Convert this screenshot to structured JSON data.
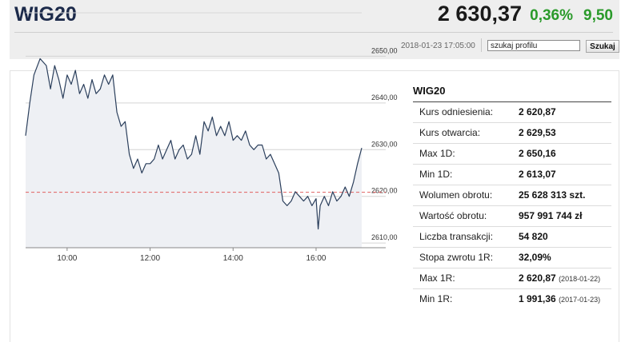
{
  "quote": {
    "name": "WIG20",
    "value": "2 630,37",
    "change_pct": "0,36%",
    "change_abs": "9,50",
    "timestamp": "2018-01-23 17:05:00"
  },
  "search": {
    "value": "szukaj profilu",
    "button": "Szukaj"
  },
  "stats": {
    "title": "WIG20",
    "rows": [
      {
        "label": "Kurs odniesienia:",
        "value": "2 620,87",
        "date": ""
      },
      {
        "label": "Kurs otwarcia:",
        "value": "2 629,53",
        "date": ""
      },
      {
        "label": "Max 1D:",
        "value": "2 650,16",
        "date": ""
      },
      {
        "label": "Min 1D:",
        "value": "2 613,07",
        "date": ""
      },
      {
        "label": "Wolumen obrotu:",
        "value": "25 628 313 szt.",
        "date": ""
      },
      {
        "label": "Wartość obrotu:",
        "value": "957 991 744 zł",
        "date": ""
      },
      {
        "label": "Liczba transakcji:",
        "value": "54 820",
        "date": ""
      },
      {
        "label": "Stopa zwrotu 1R:",
        "value": "32,09%",
        "date": ""
      },
      {
        "label": "Max 1R:",
        "value": "2 620,87",
        "date": "(2018-01-22)"
      },
      {
        "label": "Min 1R:",
        "value": "1 991,36",
        "date": "(2017-01-23)"
      }
    ]
  },
  "colors": {
    "up": "#2a9a2a",
    "line": "#2b3f5c",
    "area": "#eef0f4",
    "reference": "#e06060"
  },
  "chart_data": {
    "type": "area",
    "y_ticks": [
      "2610,00",
      "2620,00",
      "2630,00",
      "2640,00",
      "2650,00"
    ],
    "x_ticks": [
      "10:00",
      "12:00",
      "14:00",
      "16:00"
    ],
    "ylim": [
      2609,
      2660
    ],
    "xlim": [
      9.0,
      17.1
    ],
    "reference_line": 2620.87,
    "grid": true,
    "series": [
      {
        "x": [
          9.0,
          9.1,
          9.2,
          9.35,
          9.5,
          9.6,
          9.7,
          9.8,
          9.9,
          10.0,
          10.1,
          10.2,
          10.3,
          10.4,
          10.5,
          10.6,
          10.7,
          10.8,
          10.9,
          11.0,
          11.1,
          11.2,
          11.3,
          11.4,
          11.5,
          11.6,
          11.7,
          11.8,
          11.9,
          12.0,
          12.1,
          12.2,
          12.3,
          12.4,
          12.5,
          12.6,
          12.7,
          12.8,
          12.9,
          13.0,
          13.1,
          13.2,
          13.3,
          13.4,
          13.5,
          13.6,
          13.7,
          13.8,
          13.9,
          14.0,
          14.1,
          14.2,
          14.3,
          14.4,
          14.5,
          14.6,
          14.7,
          14.8,
          14.9,
          15.0,
          15.1,
          15.2,
          15.3,
          15.4,
          15.5,
          15.6,
          15.7,
          15.8,
          15.9,
          16.0,
          16.05,
          16.1,
          16.2,
          16.3,
          16.4,
          16.5,
          16.6,
          16.7,
          16.8,
          16.9,
          17.0,
          17.1
        ],
        "y": [
          2633,
          2640,
          2646,
          2649.5,
          2648,
          2643,
          2648,
          2645,
          2641,
          2646,
          2644,
          2647,
          2642,
          2644,
          2641,
          2645,
          2642,
          2643,
          2646,
          2644,
          2646,
          2638,
          2635,
          2636,
          2629,
          2626,
          2628,
          2625,
          2627,
          2627,
          2628,
          2631,
          2628,
          2630,
          2632,
          2628,
          2630,
          2631,
          2628,
          2629,
          2633,
          2629,
          2636,
          2634,
          2637,
          2633,
          2635,
          2633,
          2636,
          2632,
          2633,
          2632,
          2634,
          2631,
          2630,
          2631,
          2631,
          2628,
          2629,
          2627,
          2625,
          2619,
          2618,
          2619,
          2621,
          2620,
          2619,
          2620,
          2618,
          2619.5,
          2613,
          2618,
          2620,
          2618,
          2621,
          2619,
          2620,
          2622,
          2620,
          2623,
          2627,
          2630.37
        ]
      }
    ]
  }
}
